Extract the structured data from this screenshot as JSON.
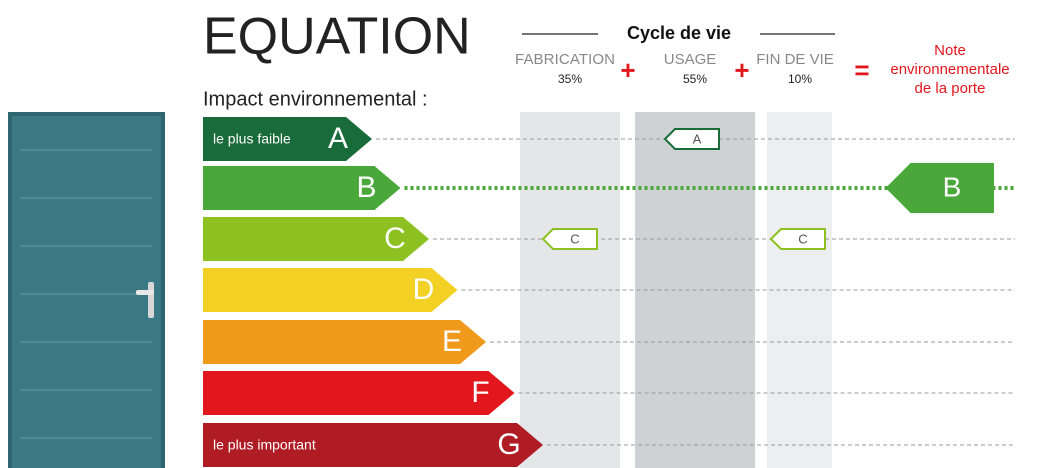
{
  "title": "EQUATION",
  "subtitle": "Impact environnemental :",
  "lifecycle": {
    "title": "Cycle de vie",
    "stages": [
      {
        "name": "FABRICATION",
        "share": "35%",
        "rating": "C"
      },
      {
        "name": "USAGE",
        "share": "55%",
        "rating": "A"
      },
      {
        "name": "FIN DE VIE",
        "share": "10%",
        "rating": "C"
      }
    ]
  },
  "operators": [
    "+",
    "+",
    "="
  ],
  "result": {
    "label": [
      "Note",
      "environnementale",
      "de la porte"
    ],
    "rating": "B"
  },
  "scale": [
    {
      "letter": "A",
      "label": "le plus faible",
      "color": "#1a6b3a"
    },
    {
      "letter": "B",
      "color": "#4aa83a"
    },
    {
      "letter": "C",
      "color": "#8dc021"
    },
    {
      "letter": "D",
      "color": "#f2d024"
    },
    {
      "letter": "E",
      "color": "#ef9a1a"
    },
    {
      "letter": "F",
      "color": "#e1171d"
    },
    {
      "letter": "G",
      "label": "le plus important",
      "color": "#b01c24"
    }
  ]
}
